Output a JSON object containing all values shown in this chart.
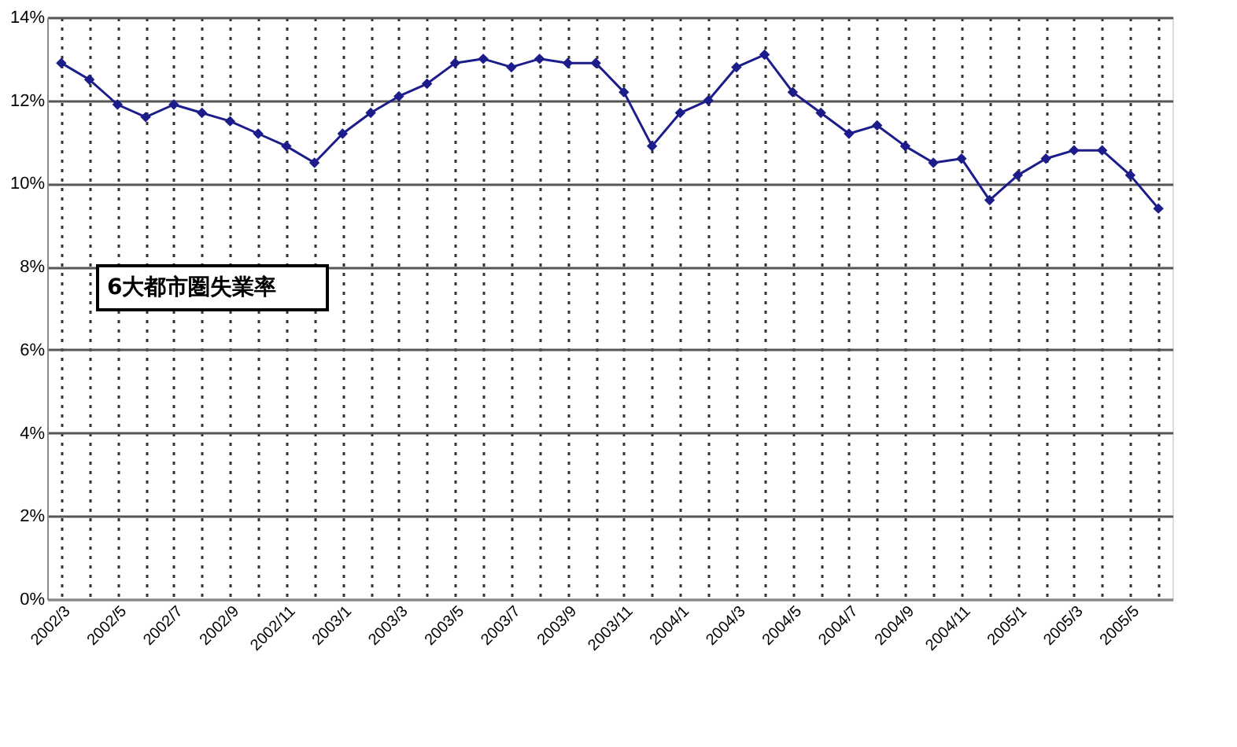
{
  "chart_data": {
    "type": "line",
    "categories": [
      "2002/3",
      null,
      "2002/5",
      null,
      "2002/7",
      null,
      "2002/9",
      null,
      "2002/11",
      null,
      "2003/1",
      null,
      "2003/3",
      null,
      "2003/5",
      null,
      "2003/7",
      null,
      "2003/9",
      null,
      "2003/11",
      null,
      "2004/1",
      null,
      "2004/3",
      null,
      "2004/5",
      null,
      "2004/7",
      null,
      "2004/9",
      null,
      "2004/11",
      null,
      "2005/1",
      null,
      "2005/3",
      null,
      "2005/5",
      null
    ],
    "series": [
      {
        "color": "#1c1c8a",
        "values": [
          12.9,
          12.5,
          11.9,
          11.6,
          11.9,
          11.7,
          11.5,
          11.2,
          10.9,
          10.5,
          11.2,
          11.7,
          12.1,
          12.4,
          12.9,
          13.0,
          12.8,
          13.0,
          12.9,
          12.9,
          12.2,
          10.9,
          11.7,
          12.0,
          12.8,
          13.1,
          12.2,
          11.7,
          11.2,
          11.4,
          10.9,
          10.5,
          10.6,
          9.6,
          10.2,
          10.6,
          10.8,
          10.8,
          10.2,
          9.4
        ]
      }
    ],
    "ylim": [
      0,
      14
    ],
    "yticks": [
      {
        "value": 0,
        "label": "0%"
      },
      {
        "value": 2,
        "label": "2%"
      },
      {
        "value": 4,
        "label": "4%"
      },
      {
        "value": 6,
        "label": "6%"
      },
      {
        "value": 8,
        "label": "8%"
      },
      {
        "value": 10,
        "label": "10%"
      },
      {
        "value": 12,
        "label": "12%"
      },
      {
        "value": 14,
        "label": "14%"
      }
    ],
    "grid": true,
    "marker": "diamond",
    "line_style": "solid",
    "annotations": [
      "6大都市圏失業率"
    ]
  }
}
